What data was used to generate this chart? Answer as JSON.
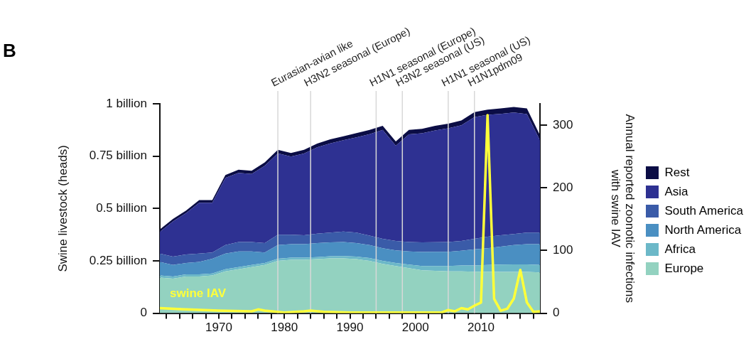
{
  "chart_data": {
    "type": "area",
    "title": "B",
    "ylabel": "Swine livestock (heads)",
    "y2label": "Annual reported zoonotic infections with swine IAV",
    "stacked": true,
    "grid": false,
    "legend": "right",
    "marker": "none",
    "x": [
      1961,
      1963,
      1965,
      1967,
      1969,
      1971,
      1973,
      1975,
      1977,
      1979,
      1981,
      1983,
      1985,
      1987,
      1989,
      1991,
      1993,
      1995,
      1997,
      1999,
      2001,
      2003,
      2005,
      2007,
      2009,
      2011,
      2013,
      2015,
      2017,
      2019
    ],
    "xlim": [
      1961,
      2019
    ],
    "xticks": [
      {
        "value": 1962,
        "label": null
      },
      {
        "value": 1964,
        "label": null
      },
      {
        "value": 1966,
        "label": null
      },
      {
        "value": 1968,
        "label": null
      },
      1970,
      {
        "value": 1972,
        "label": null
      },
      {
        "value": 1974,
        "label": null
      },
      {
        "value": 1976,
        "label": null
      },
      {
        "value": 1978,
        "label": null
      },
      1980,
      {
        "value": 1982,
        "label": null
      },
      {
        "value": 1984,
        "label": null
      },
      {
        "value": 1986,
        "label": null
      },
      {
        "value": 1988,
        "label": null
      },
      1990,
      {
        "value": 1992,
        "label": null
      },
      {
        "value": 1994,
        "label": null
      },
      {
        "value": 1996,
        "label": null
      },
      {
        "value": 1998,
        "label": null
      },
      2000,
      {
        "value": 2002,
        "label": null
      },
      {
        "value": 2004,
        "label": null
      },
      {
        "value": 2006,
        "label": null
      },
      {
        "value": 2008,
        "label": null
      },
      2010,
      {
        "value": 2012,
        "label": null
      },
      {
        "value": 2014,
        "label": null
      },
      {
        "value": 2016,
        "label": null
      },
      {
        "value": 2018,
        "label": null
      }
    ],
    "ylim": [
      0,
      1
    ],
    "yticks": [
      0,
      {
        "value": 0.25,
        "label": "0.25 billion"
      },
      {
        "value": 0.5,
        "label": "0.5 billion"
      },
      {
        "value": 0.75,
        "label": "0.75 billion"
      },
      {
        "value": 1,
        "label": "1 billion"
      }
    ],
    "y2lim": [
      0,
      334
    ],
    "y2ticks": [
      0,
      100,
      200,
      300
    ],
    "series": [
      {
        "name": "Europe",
        "color": "#93d2c0",
        "values": [
          0.17,
          0.165,
          0.175,
          0.175,
          0.18,
          0.2,
          0.21,
          0.22,
          0.23,
          0.25,
          0.255,
          0.255,
          0.258,
          0.262,
          0.262,
          0.258,
          0.25,
          0.235,
          0.225,
          0.215,
          0.205,
          0.202,
          0.2,
          0.2,
          0.198,
          0.198,
          0.197,
          0.197,
          0.197,
          0.195
        ]
      },
      {
        "name": "Africa",
        "color": "#6cb8c8",
        "values": [
          0.01,
          0.01,
          0.01,
          0.01,
          0.01,
          0.01,
          0.01,
          0.01,
          0.01,
          0.01,
          0.01,
          0.01,
          0.01,
          0.01,
          0.011,
          0.012,
          0.013,
          0.015,
          0.015,
          0.017,
          0.02,
          0.023,
          0.025,
          0.028,
          0.03,
          0.032,
          0.035,
          0.036,
          0.036,
          0.035
        ]
      },
      {
        "name": "North America",
        "color": "#4a8fc2",
        "values": [
          0.065,
          0.055,
          0.055,
          0.06,
          0.07,
          0.075,
          0.075,
          0.065,
          0.05,
          0.065,
          0.065,
          0.065,
          0.067,
          0.066,
          0.067,
          0.065,
          0.062,
          0.06,
          0.06,
          0.063,
          0.067,
          0.068,
          0.068,
          0.07,
          0.077,
          0.08,
          0.086,
          0.092,
          0.097,
          0.1
        ]
      },
      {
        "name": "South America",
        "color": "#3a5ba8",
        "values": [
          0.04,
          0.04,
          0.04,
          0.04,
          0.03,
          0.04,
          0.045,
          0.045,
          0.045,
          0.05,
          0.045,
          0.042,
          0.045,
          0.047,
          0.05,
          0.05,
          0.045,
          0.045,
          0.045,
          0.045,
          0.046,
          0.046,
          0.047,
          0.047,
          0.05,
          0.055,
          0.054,
          0.053,
          0.055,
          0.055
        ]
      },
      {
        "name": "Asia",
        "color": "#2e3192",
        "values": [
          0.103,
          0.168,
          0.198,
          0.242,
          0.237,
          0.321,
          0.33,
          0.325,
          0.369,
          0.388,
          0.373,
          0.39,
          0.412,
          0.426,
          0.436,
          0.455,
          0.485,
          0.52,
          0.455,
          0.514,
          0.521,
          0.534,
          0.543,
          0.552,
          0.581,
          0.582,
          0.58,
          0.58,
          0.566,
          0.44
        ]
      },
      {
        "name": "Rest",
        "color": "#0b0d45",
        "values": [
          0.012,
          0.012,
          0.012,
          0.013,
          0.013,
          0.014,
          0.015,
          0.015,
          0.016,
          0.017,
          0.017,
          0.018,
          0.018,
          0.019,
          0.019,
          0.02,
          0.02,
          0.02,
          0.02,
          0.021,
          0.021,
          0.022,
          0.022,
          0.023,
          0.024,
          0.025,
          0.026,
          0.027,
          0.027,
          0.025
        ]
      },
      {
        "name": "swine IAV",
        "type": "line",
        "axis": "y2",
        "color": "#ffff3a",
        "x": [
          1961,
          1965,
          1970,
          1975,
          1976,
          1977,
          1980,
          1983,
          1984,
          1986,
          1990,
          1995,
          2000,
          2004,
          2005,
          2006,
          2007,
          2008,
          2009,
          2010,
          2011,
          2012,
          2013,
          2014,
          2015,
          2016,
          2017,
          2018,
          2019
        ],
        "values": [
          8,
          6,
          4,
          3,
          6,
          4,
          1,
          3,
          4,
          2,
          1,
          1,
          1,
          1,
          5,
          3,
          8,
          6,
          12,
          17,
          316,
          23,
          4,
          7,
          23,
          69,
          17,
          2,
          3
        ]
      }
    ],
    "ref_lines": [
      {
        "axis": "x",
        "value": 1979,
        "label": "Eurasian-avian like",
        "color": "#d8d8d8"
      },
      {
        "axis": "x",
        "value": 1984,
        "label": "H3N2 seasonal (Europe)",
        "color": "#d8d8d8"
      },
      {
        "axis": "x",
        "value": 1994,
        "label": "H1N1 seasonal (Europe)",
        "color": "#d8d8d8"
      },
      {
        "axis": "x",
        "value": 1998,
        "label": "H3N2 seasonal (US)",
        "color": "#d8d8d8"
      },
      {
        "axis": "x",
        "value": 2005,
        "label": "H1N1 seasonal (US)",
        "color": "#d8d8d8"
      },
      {
        "axis": "x",
        "value": 2009,
        "label": "H1N1pdm09",
        "color": "#d8d8d8"
      }
    ]
  }
}
